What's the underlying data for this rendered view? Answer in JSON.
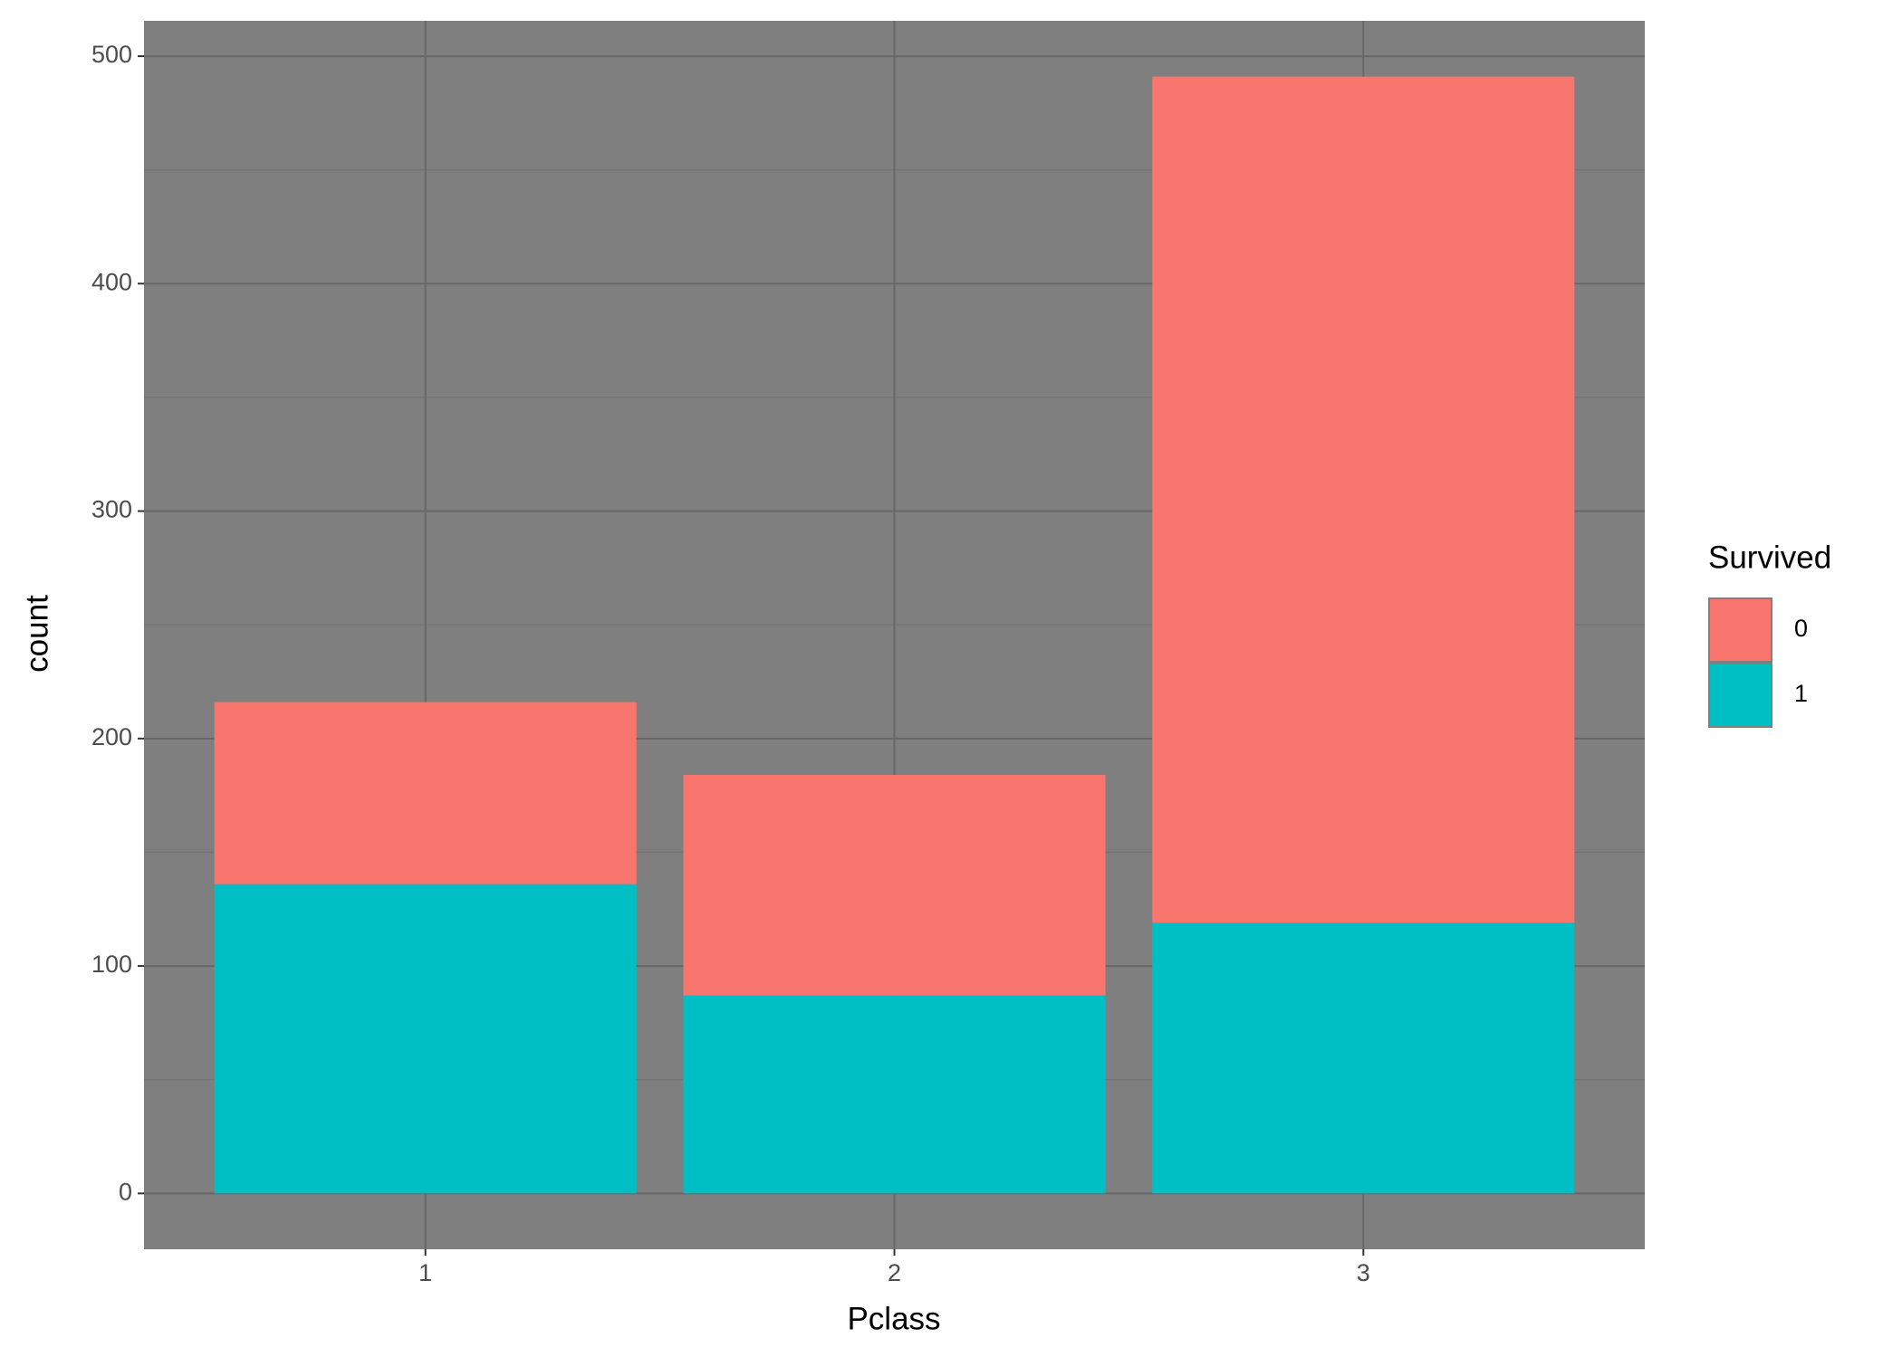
{
  "chart_data": {
    "type": "bar",
    "stacked": true,
    "x_label": "Pclass",
    "y_label": "count",
    "categories": [
      "1",
      "2",
      "3"
    ],
    "legend_title": "Survived",
    "legend_position": "right",
    "series": [
      {
        "name": "0",
        "color": "#f8766d",
        "values": [
          80,
          97,
          372
        ]
      },
      {
        "name": "1",
        "color": "#00bfc4",
        "values": [
          136,
          87,
          119
        ]
      }
    ],
    "ylim": [
      -24.55,
      515.55
    ],
    "yticks": [
      0,
      100,
      200,
      300,
      400,
      500
    ],
    "minor_yticks": [
      50,
      150,
      250,
      350,
      450
    ],
    "grid": true
  }
}
